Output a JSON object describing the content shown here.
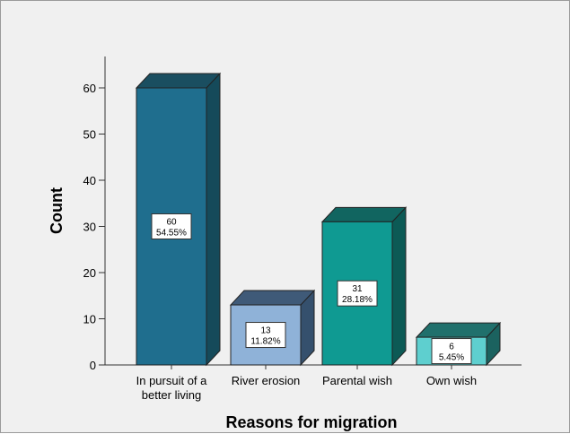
{
  "chart_data": {
    "type": "bar",
    "style": "3d",
    "categories": [
      "In pursuit of a better living",
      "River erosion",
      "Parental wish",
      "Own wish"
    ],
    "category_label_lines": [
      [
        "In pursuit of a",
        "better living"
      ],
      [
        "River erosion"
      ],
      [
        "Parental wish"
      ],
      [
        "Own wish"
      ]
    ],
    "values": [
      60,
      13,
      31,
      6
    ],
    "percent_labels": [
      "54.55%",
      "11.82%",
      "28.18%",
      "5.45%"
    ],
    "xlabel": "Reasons for migration",
    "ylabel": "Count",
    "ylim": [
      0,
      65
    ],
    "yticks": [
      0,
      10,
      20,
      30,
      40,
      50,
      60
    ],
    "grid": false,
    "bar_colors": [
      {
        "front": "#1f6e8e",
        "top": "#1a4e60",
        "side": "#154a5a"
      },
      {
        "front": "#8fb2d8",
        "top": "#3f5a78",
        "side": "#35506d"
      },
      {
        "front": "#0f9a92",
        "top": "#116560",
        "side": "#0c5a55"
      },
      {
        "front": "#5ecfcf",
        "top": "#20706c",
        "side": "#1b625f"
      }
    ]
  }
}
